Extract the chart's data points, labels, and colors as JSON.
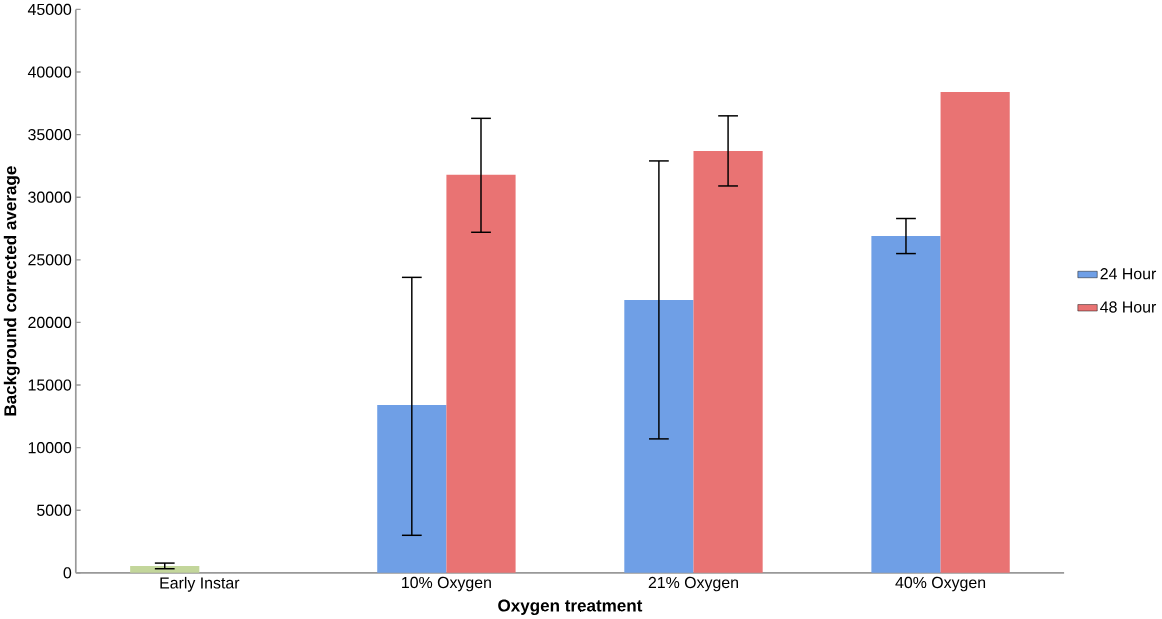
{
  "chart_data": {
    "type": "bar",
    "xlabel": "Oxygen treatment",
    "ylabel": "Background corrected average",
    "categories": [
      "Early Instar",
      "10% Oxygen",
      "21% Oxygen",
      "40% Oxygen"
    ],
    "series": [
      {
        "name": "24 Hour",
        "color": "#6f9fe6",
        "colors": [
          "#c3d69b",
          "#6f9fe6",
          "#6f9fe6",
          "#6f9fe6"
        ],
        "values": [
          550,
          13400,
          21800,
          26900
        ],
        "errors": [
          [
            330,
            780
          ],
          [
            3000,
            23600
          ],
          [
            10700,
            32900
          ],
          [
            25500,
            28300
          ]
        ]
      },
      {
        "name": "48 Hour",
        "color": "#e97373",
        "values": [
          null,
          31800,
          33700,
          38400
        ],
        "errors": [
          null,
          [
            27200,
            36300
          ],
          [
            30900,
            36500
          ],
          null
        ]
      }
    ],
    "ylim": [
      0,
      45000
    ],
    "yticks": [
      0,
      5000,
      10000,
      15000,
      20000,
      25000,
      30000,
      35000,
      40000,
      45000
    ],
    "grid": false,
    "legend": "right"
  }
}
